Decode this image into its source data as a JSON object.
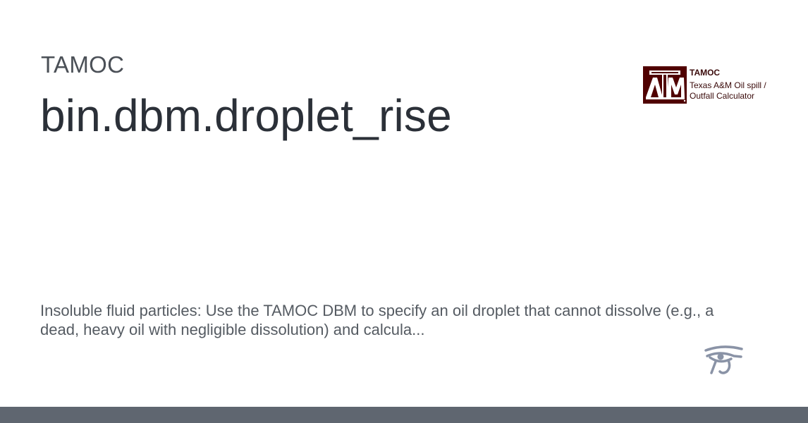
{
  "header": {
    "site_name": "TAMOC",
    "page_title": "bin.dbm.droplet_rise"
  },
  "logo": {
    "brand": "TAMOC",
    "line1": "Texas A&M Oil spill /",
    "line2": "Outfall Calculator",
    "mark_letters": "ATM",
    "icon": "tamu-logo-icon",
    "brand_color": "#500000"
  },
  "content": {
    "description": "Insoluble fluid particles: Use the TAMOC DBM to specify an oil droplet that cannot dissolve (e.g., a dead, heavy oil with negligible dissolution) and calcula..."
  },
  "footer": {
    "icon": "eye-of-horus-icon",
    "bar_color": "#5f6670"
  }
}
